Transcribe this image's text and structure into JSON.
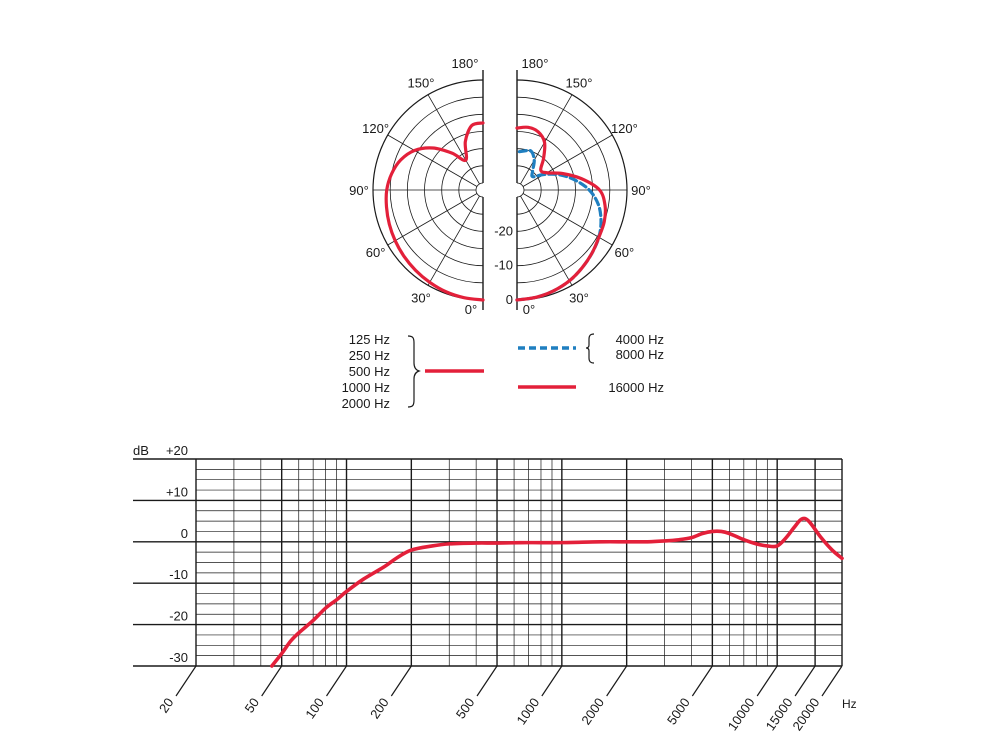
{
  "colors": {
    "low_mid_curve": "#e3203a",
    "high_curve": "#e3203a",
    "mid_curve_dashed": "#1f7fc0",
    "grid": "#1a1a1a"
  },
  "chart_data": [
    {
      "type": "polar",
      "angle_labels_left": [
        "0°",
        "30°",
        "60°",
        "90°",
        "120°",
        "150°",
        "180°"
      ],
      "angle_labels_right": [
        "0°",
        "30°",
        "60°",
        "90°",
        "120°",
        "150°",
        "180°"
      ],
      "radial_labels": [
        "0",
        "-10",
        "-20"
      ],
      "rlim_db": [
        -30,
        0
      ],
      "series": [
        {
          "name": "125 Hz, 250 Hz, 500 Hz, 1000 Hz, 2000 Hz",
          "side": "left",
          "style": "solid",
          "points": [
            [
              0,
              0
            ],
            [
              10,
              -0.2
            ],
            [
              20,
              -0.5
            ],
            [
              30,
              -1
            ],
            [
              40,
              -1.5
            ],
            [
              50,
              -2
            ],
            [
              60,
              -2.5
            ],
            [
              70,
              -3
            ],
            [
              80,
              -3.5
            ],
            [
              90,
              -4
            ],
            [
              100,
              -5
            ],
            [
              110,
              -6.5
            ],
            [
              120,
              -9
            ],
            [
              130,
              -13
            ],
            [
              140,
              -18
            ],
            [
              150,
              -22
            ],
            [
              160,
              -17
            ],
            [
              170,
              -13
            ],
            [
              180,
              -12.5
            ]
          ]
        },
        {
          "name": "4000 Hz, 8000 Hz",
          "side": "right",
          "style": "dashed",
          "points": [
            [
              0,
              0
            ],
            [
              10,
              -0.3
            ],
            [
              20,
              -0.8
            ],
            [
              30,
              -1.5
            ],
            [
              40,
              -2.5
            ],
            [
              50,
              -3.5
            ],
            [
              60,
              -4.5
            ],
            [
              70,
              -6
            ],
            [
              80,
              -8
            ],
            [
              90,
              -11
            ],
            [
              100,
              -15
            ],
            [
              110,
              -19
            ],
            [
              120,
              -23
            ],
            [
              130,
              -26
            ],
            [
              140,
              -25
            ],
            [
              150,
              -22
            ],
            [
              160,
              -20
            ],
            [
              170,
              -20.5
            ],
            [
              180,
              -21
            ]
          ]
        },
        {
          "name": "16000 Hz",
          "side": "right",
          "style": "solid",
          "points": [
            [
              0,
              0
            ],
            [
              10,
              -0.3
            ],
            [
              20,
              -0.8
            ],
            [
              30,
              -1.5
            ],
            [
              40,
              -2.5
            ],
            [
              50,
              -3.5
            ],
            [
              60,
              -4.5
            ],
            [
              70,
              -5
            ],
            [
              80,
              -6
            ],
            [
              90,
              -8
            ],
            [
              100,
              -13
            ],
            [
              110,
              -18
            ],
            [
              120,
              -22
            ],
            [
              130,
              -23
            ],
            [
              140,
              -20
            ],
            [
              150,
              -16
            ],
            [
              160,
              -14
            ],
            [
              170,
              -13.5
            ],
            [
              180,
              -14
            ]
          ]
        }
      ]
    },
    {
      "type": "line",
      "xscale": "log",
      "xlim": [
        20,
        20000
      ],
      "ylim": [
        -30,
        20
      ],
      "ylabel": "dB",
      "xlabel": "Hz",
      "x_ticks": [
        "20",
        "50",
        "100",
        "200",
        "500",
        "1000",
        "2000",
        "5000",
        "10000",
        "15000",
        "20000"
      ],
      "y_ticks": [
        "+20",
        "+10",
        "0",
        "-10",
        "-20",
        "-30"
      ],
      "series": [
        {
          "name": "",
          "x": [
            45,
            50,
            55,
            60,
            70,
            80,
            90,
            100,
            120,
            150,
            170,
            200,
            250,
            300,
            400,
            500,
            700,
            1000,
            1500,
            2000,
            2500,
            3000,
            3500,
            4000,
            4500,
            5000,
            5500,
            6000,
            7000,
            8000,
            9000,
            10000,
            11000,
            12000,
            13000,
            14000,
            16000,
            18000,
            20000
          ],
          "y": [
            -30,
            -27,
            -24,
            -22,
            -19,
            -16,
            -14,
            -12,
            -9,
            -6,
            -4,
            -2,
            -1,
            -0.5,
            -0.3,
            -0.3,
            -0.2,
            -0.2,
            0,
            0,
            0,
            0.2,
            0.5,
            1,
            2,
            2.5,
            2.5,
            2,
            0.5,
            -0.5,
            -1,
            -1,
            1,
            3.5,
            5.5,
            5,
            1,
            -2,
            -4
          ]
        }
      ]
    }
  ],
  "legend": {
    "group1_freqs": [
      "125 Hz",
      "250 Hz",
      "500 Hz",
      "1000 Hz",
      "2000 Hz"
    ],
    "group2_freqs": [
      "4000 Hz",
      "8000 Hz"
    ],
    "group3_freqs": [
      "16000 Hz"
    ]
  }
}
